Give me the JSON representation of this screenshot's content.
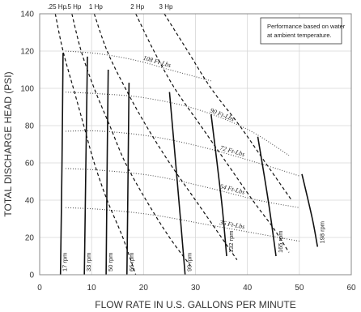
{
  "chart_data": {
    "type": "line",
    "xlabel": "FLOW RATE IN U.S. GALLONS PER MINUTE",
    "ylabel": "TOTAL DISCHARGE HEAD (PSI)",
    "xlim": [
      0,
      60
    ],
    "ylim": [
      0,
      140
    ],
    "xticks": [
      0,
      10,
      20,
      30,
      40,
      50,
      60
    ],
    "yticks": [
      0,
      20,
      40,
      60,
      80,
      100,
      120,
      140
    ],
    "grid": true,
    "note": [
      "Performance based on water",
      "at ambient temperature."
    ],
    "rpm_curves": [
      {
        "label": "17 rpm",
        "points": [
          [
            4.5,
            119
          ],
          [
            4.3,
            60
          ],
          [
            4.0,
            0
          ]
        ]
      },
      {
        "label": "33 rpm",
        "points": [
          [
            9.2,
            117
          ],
          [
            8.9,
            60
          ],
          [
            8.6,
            0
          ]
        ]
      },
      {
        "label": "50 rpm",
        "points": [
          [
            13.2,
            110
          ],
          [
            13.0,
            60
          ],
          [
            12.8,
            0
          ]
        ]
      },
      {
        "label": "66 rpm",
        "points": [
          [
            17.2,
            103
          ],
          [
            17.0,
            50
          ],
          [
            16.8,
            0
          ]
        ]
      },
      {
        "label": "99 rpm",
        "points": [
          [
            25.0,
            98
          ],
          [
            26.5,
            50
          ],
          [
            28.0,
            0
          ]
        ]
      },
      {
        "label": "132 rpm",
        "points": [
          [
            33.0,
            86
          ],
          [
            35.0,
            40
          ],
          [
            36.0,
            10
          ]
        ]
      },
      {
        "label": "165 rpm",
        "points": [
          [
            42.0,
            74
          ],
          [
            44.0,
            40
          ],
          [
            45.5,
            10
          ]
        ]
      },
      {
        "label": "198 rpm",
        "points": [
          [
            50.5,
            54
          ],
          [
            52.5,
            30
          ],
          [
            53.5,
            15
          ]
        ]
      }
    ],
    "torque_curves": [
      {
        "label": "108 Ft-Lbs",
        "points": [
          [
            5,
            120
          ],
          [
            10,
            119
          ],
          [
            15,
            117
          ],
          [
            20,
            114
          ],
          [
            25,
            110
          ],
          [
            33,
            104
          ]
        ]
      },
      {
        "label": "90 Ft-Lbs",
        "points": [
          [
            5,
            98
          ],
          [
            12,
            97
          ],
          [
            20,
            95
          ],
          [
            30,
            89
          ],
          [
            40,
            78
          ],
          [
            48,
            64
          ]
        ]
      },
      {
        "label": "72 Ft-Lbs",
        "points": [
          [
            5,
            77
          ],
          [
            12,
            77
          ],
          [
            22,
            74
          ],
          [
            32,
            68
          ],
          [
            42,
            60
          ],
          [
            50,
            53
          ]
        ]
      },
      {
        "label": "54 Ft-Lbs",
        "points": [
          [
            5,
            57
          ],
          [
            12,
            56
          ],
          [
            22,
            53
          ],
          [
            32,
            47
          ],
          [
            42,
            40
          ],
          [
            50,
            36
          ]
        ]
      },
      {
        "label": "36 Ft-Lbs",
        "points": [
          [
            5,
            36
          ],
          [
            12,
            35
          ],
          [
            22,
            32
          ],
          [
            32,
            27
          ],
          [
            42,
            22
          ],
          [
            50,
            18
          ]
        ]
      }
    ],
    "hp_curves": [
      {
        "label": ".25 Hp",
        "points": [
          [
            3.0,
            140
          ],
          [
            4.5,
            120
          ],
          [
            6.5,
            100
          ],
          [
            8.5,
            80
          ],
          [
            10.5,
            60
          ],
          [
            13.0,
            40
          ],
          [
            16.0,
            20
          ],
          [
            18.5,
            0
          ]
        ]
      },
      {
        "label": ".5 Hp",
        "points": [
          [
            6.2,
            140
          ],
          [
            8.0,
            120
          ],
          [
            10.5,
            100
          ],
          [
            13.5,
            80
          ],
          [
            16.5,
            60
          ],
          [
            20.5,
            40
          ],
          [
            25.0,
            20
          ],
          [
            29.0,
            5
          ]
        ]
      },
      {
        "label": "1 Hp",
        "points": [
          [
            10.5,
            140
          ],
          [
            13.0,
            120
          ],
          [
            16.5,
            100
          ],
          [
            20.5,
            80
          ],
          [
            25.0,
            60
          ],
          [
            30.0,
            40
          ],
          [
            35.0,
            20
          ],
          [
            38.0,
            8
          ]
        ]
      },
      {
        "label": "2 Hp",
        "points": [
          [
            18.5,
            140
          ],
          [
            22.0,
            120
          ],
          [
            26.0,
            100
          ],
          [
            31.0,
            80
          ],
          [
            36.0,
            60
          ],
          [
            41.0,
            40
          ],
          [
            45.0,
            25
          ],
          [
            48.0,
            12
          ]
        ]
      },
      {
        "label": "3 Hp",
        "points": [
          [
            24.0,
            140
          ],
          [
            28.5,
            120
          ],
          [
            33.0,
            100
          ],
          [
            38.5,
            80
          ],
          [
            43.5,
            60
          ],
          [
            48.5,
            40
          ]
        ]
      }
    ]
  }
}
